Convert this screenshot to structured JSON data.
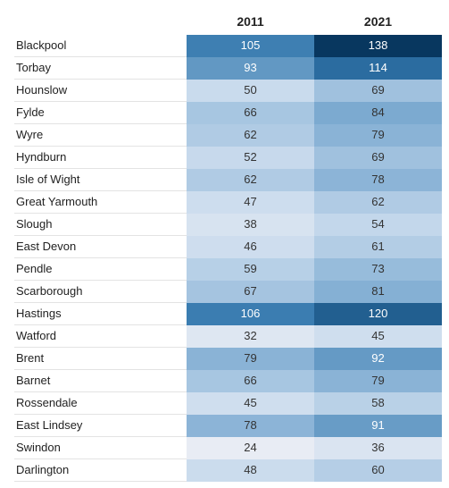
{
  "chart_data": {
    "type": "heatmap",
    "columns": [
      "2011",
      "2021"
    ],
    "rows": [
      {
        "label": "Blackpool",
        "values": [
          105,
          138
        ]
      },
      {
        "label": "Torbay",
        "values": [
          93,
          114
        ]
      },
      {
        "label": "Hounslow",
        "values": [
          50,
          69
        ]
      },
      {
        "label": "Fylde",
        "values": [
          66,
          84
        ]
      },
      {
        "label": "Wyre",
        "values": [
          62,
          79
        ]
      },
      {
        "label": "Hyndburn",
        "values": [
          52,
          69
        ]
      },
      {
        "label": "Isle of Wight",
        "values": [
          62,
          78
        ]
      },
      {
        "label": "Great Yarmouth",
        "values": [
          47,
          62
        ]
      },
      {
        "label": "Slough",
        "values": [
          38,
          54
        ]
      },
      {
        "label": "East Devon",
        "values": [
          46,
          61
        ]
      },
      {
        "label": "Pendle",
        "values": [
          59,
          73
        ]
      },
      {
        "label": "Scarborough",
        "values": [
          67,
          81
        ]
      },
      {
        "label": "Hastings",
        "values": [
          106,
          120
        ]
      },
      {
        "label": "Watford",
        "values": [
          32,
          45
        ]
      },
      {
        "label": "Brent",
        "values": [
          79,
          92
        ]
      },
      {
        "label": "Barnet",
        "values": [
          66,
          79
        ]
      },
      {
        "label": "Rossendale",
        "values": [
          45,
          58
        ]
      },
      {
        "label": "East Lindsey",
        "values": [
          78,
          91
        ]
      },
      {
        "label": "Swindon",
        "values": [
          24,
          36
        ]
      },
      {
        "label": "Darlington",
        "values": [
          48,
          60
        ]
      }
    ],
    "color_scale": {
      "min": 24,
      "max": 138,
      "low_color": "#e8ecf4",
      "high_color": "#08375f"
    }
  }
}
